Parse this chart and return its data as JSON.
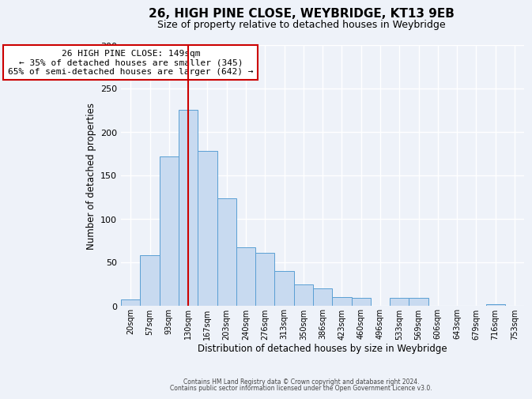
{
  "title": "26, HIGH PINE CLOSE, WEYBRIDGE, KT13 9EB",
  "subtitle": "Size of property relative to detached houses in Weybridge",
  "xlabel": "Distribution of detached houses by size in Weybridge",
  "ylabel": "Number of detached properties",
  "bar_labels": [
    "20sqm",
    "57sqm",
    "93sqm",
    "130sqm",
    "167sqm",
    "203sqm",
    "240sqm",
    "276sqm",
    "313sqm",
    "350sqm",
    "386sqm",
    "423sqm",
    "460sqm",
    "496sqm",
    "533sqm",
    "569sqm",
    "606sqm",
    "643sqm",
    "679sqm",
    "716sqm",
    "753sqm"
  ],
  "bar_values": [
    7,
    58,
    172,
    225,
    178,
    124,
    67,
    61,
    40,
    25,
    20,
    10,
    9,
    0,
    9,
    9,
    0,
    0,
    0,
    2,
    0
  ],
  "bar_color": "#c8daf0",
  "bar_edge_color": "#5a9fd4",
  "vline_color": "#cc0000",
  "vline_x_index": 3.51,
  "annotation_title": "26 HIGH PINE CLOSE: 149sqm",
  "annotation_line1": "← 35% of detached houses are smaller (345)",
  "annotation_line2": "65% of semi-detached houses are larger (642) →",
  "annotation_box_color": "#ffffff",
  "annotation_box_edge": "#cc0000",
  "ylim": [
    0,
    300
  ],
  "yticks": [
    0,
    50,
    100,
    150,
    200,
    250,
    300
  ],
  "bg_color": "#eef2f9",
  "grid_color": "#ffffff",
  "footnote1": "Contains HM Land Registry data © Crown copyright and database right 2024.",
  "footnote2": "Contains public sector information licensed under the Open Government Licence v3.0."
}
